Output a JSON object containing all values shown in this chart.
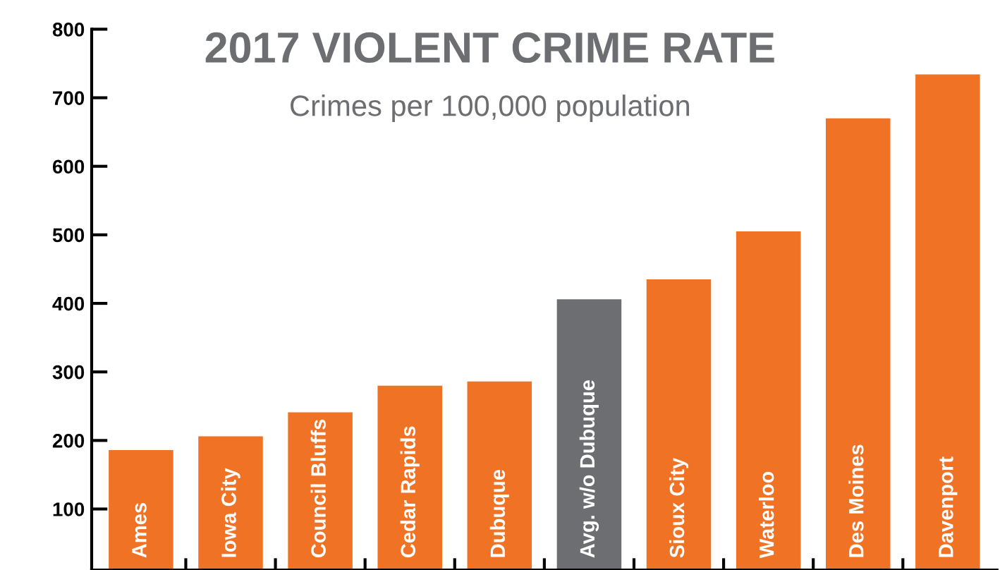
{
  "chart_data": {
    "type": "bar",
    "title": "2017 VIOLENT CRIME RATE",
    "subtitle": "Crimes per 100,000 population",
    "categories": [
      "Ames",
      "Iowa City",
      "Council Bluffs",
      "Cedar Rapids",
      "Dubuque",
      "Avg. w/o Dubuque",
      "Sioux City",
      "Waterloo",
      "Des Moines",
      "Davenport"
    ],
    "values": [
      186,
      206,
      241,
      280,
      286,
      406,
      435,
      505,
      670,
      734
    ],
    "colors": [
      "#f07224",
      "#f07224",
      "#f07224",
      "#f07224",
      "#f07224",
      "#6d6e71",
      "#f07224",
      "#f07224",
      "#f07224",
      "#f07224"
    ],
    "ylim": [
      11,
      800
    ],
    "yticks": [
      100,
      200,
      300,
      400,
      500,
      600,
      700,
      800
    ],
    "grid": false,
    "legend": false
  }
}
